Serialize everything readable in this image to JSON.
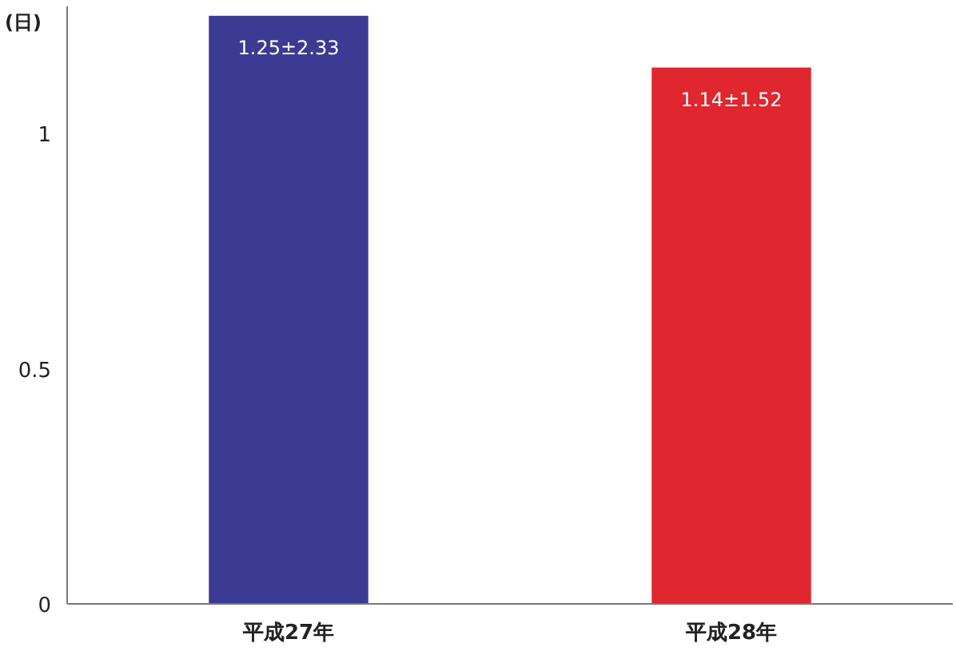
{
  "chart_data": {
    "type": "bar",
    "ylabel": "(日)",
    "categories": [
      "平成27年",
      "平成28年"
    ],
    "values": [
      1.25,
      1.14
    ],
    "colors": [
      "#3d3a93",
      "#e0262e"
    ],
    "value_labels": [
      "1.25±2.33",
      "1.14±1.52"
    ],
    "ylim": [
      0,
      1.27
    ],
    "yticks": [
      0,
      0.5,
      1
    ]
  }
}
